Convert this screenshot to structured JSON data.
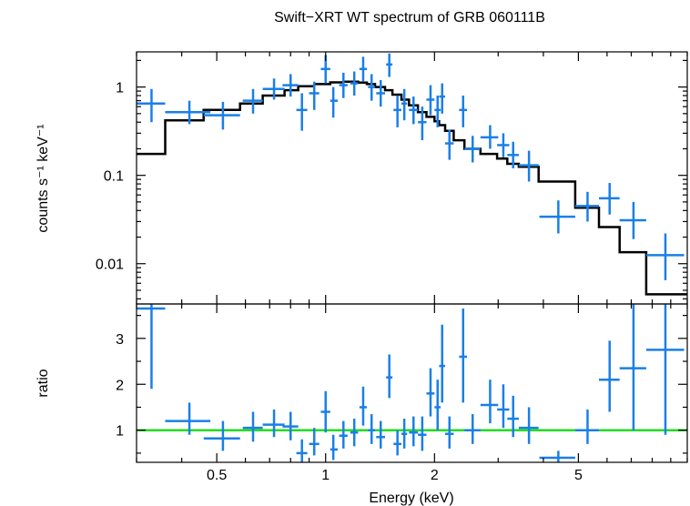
{
  "chart_data": [
    {
      "panel": "spectrum",
      "type": "scatter",
      "title": "Swift−XRT WT spectrum of GRB 060111B",
      "ylabel": "counts s⁻¹ keV⁻¹",
      "xlabel": "",
      "xscale": "log",
      "yscale": "log",
      "xlim": [
        0.3,
        10
      ],
      "ylim": [
        0.0035,
        2.5
      ],
      "yticks": [
        {
          "v": 0.01,
          "label": "0.01"
        },
        {
          "v": 0.1,
          "label": "0.1"
        },
        {
          "v": 1,
          "label": "1"
        }
      ],
      "colors": {
        "data": "#1a7fe6",
        "model": "#000000"
      },
      "points": [
        {
          "x": 0.33,
          "xlo": 0.3,
          "xhi": 0.36,
          "y": 0.65,
          "ylo": 0.4,
          "yhi": 0.95
        },
        {
          "x": 0.42,
          "xlo": 0.36,
          "xhi": 0.48,
          "y": 0.52,
          "ylo": 0.38,
          "yhi": 0.7
        },
        {
          "x": 0.52,
          "xlo": 0.46,
          "xhi": 0.58,
          "y": 0.48,
          "ylo": 0.33,
          "yhi": 0.68
        },
        {
          "x": 0.63,
          "xlo": 0.59,
          "xhi": 0.67,
          "y": 0.7,
          "ylo": 0.5,
          "yhi": 0.95
        },
        {
          "x": 0.72,
          "xlo": 0.67,
          "xhi": 0.77,
          "y": 0.95,
          "ylo": 0.72,
          "yhi": 1.25
        },
        {
          "x": 0.8,
          "xlo": 0.76,
          "xhi": 0.84,
          "y": 1.05,
          "ylo": 0.78,
          "yhi": 1.4
        },
        {
          "x": 0.86,
          "xlo": 0.83,
          "xhi": 0.89,
          "y": 0.55,
          "ylo": 0.32,
          "yhi": 0.85
        },
        {
          "x": 0.93,
          "xlo": 0.9,
          "xhi": 0.96,
          "y": 0.85,
          "ylo": 0.55,
          "yhi": 1.15
        },
        {
          "x": 1.0,
          "xlo": 0.97,
          "xhi": 1.03,
          "y": 1.6,
          "ylo": 1.1,
          "yhi": 2.3
        },
        {
          "x": 1.05,
          "xlo": 1.03,
          "xhi": 1.08,
          "y": 0.7,
          "ylo": 0.45,
          "yhi": 1.0
        },
        {
          "x": 1.12,
          "xlo": 1.09,
          "xhi": 1.15,
          "y": 1.05,
          "ylo": 0.75,
          "yhi": 1.45
        },
        {
          "x": 1.2,
          "xlo": 1.17,
          "xhi": 1.23,
          "y": 1.1,
          "ylo": 0.8,
          "yhi": 1.5
        },
        {
          "x": 1.27,
          "xlo": 1.24,
          "xhi": 1.3,
          "y": 1.6,
          "ylo": 1.15,
          "yhi": 2.2
        },
        {
          "x": 1.34,
          "xlo": 1.31,
          "xhi": 1.37,
          "y": 1.0,
          "ylo": 0.7,
          "yhi": 1.4
        },
        {
          "x": 1.42,
          "xlo": 1.38,
          "xhi": 1.46,
          "y": 0.85,
          "ylo": 0.6,
          "yhi": 1.2
        },
        {
          "x": 1.5,
          "xlo": 1.47,
          "xhi": 1.53,
          "y": 1.8,
          "ylo": 1.3,
          "yhi": 2.4
        },
        {
          "x": 1.58,
          "xlo": 1.54,
          "xhi": 1.62,
          "y": 0.55,
          "ylo": 0.35,
          "yhi": 0.8
        },
        {
          "x": 1.65,
          "xlo": 1.62,
          "xhi": 1.68,
          "y": 0.65,
          "ylo": 0.42,
          "yhi": 0.95
        },
        {
          "x": 1.75,
          "xlo": 1.7,
          "xhi": 1.8,
          "y": 0.55,
          "ylo": 0.38,
          "yhi": 0.78
        },
        {
          "x": 1.85,
          "xlo": 1.8,
          "xhi": 1.9,
          "y": 0.4,
          "ylo": 0.25,
          "yhi": 0.6
        },
        {
          "x": 1.95,
          "xlo": 1.9,
          "xhi": 2.0,
          "y": 0.72,
          "ylo": 0.48,
          "yhi": 1.05
        },
        {
          "x": 2.04,
          "xlo": 2.0,
          "xhi": 2.08,
          "y": 0.55,
          "ylo": 0.35,
          "yhi": 0.8
        },
        {
          "x": 2.1,
          "xlo": 2.06,
          "xhi": 2.14,
          "y": 0.78,
          "ylo": 0.5,
          "yhi": 1.1
        },
        {
          "x": 2.2,
          "xlo": 2.14,
          "xhi": 2.26,
          "y": 0.23,
          "ylo": 0.15,
          "yhi": 0.33
        },
        {
          "x": 2.4,
          "xlo": 2.34,
          "xhi": 2.46,
          "y": 0.55,
          "ylo": 0.35,
          "yhi": 0.8
        },
        {
          "x": 2.55,
          "xlo": 2.42,
          "xhi": 2.68,
          "y": 0.2,
          "ylo": 0.14,
          "yhi": 0.28
        },
        {
          "x": 2.85,
          "xlo": 2.68,
          "xhi": 3.0,
          "y": 0.27,
          "ylo": 0.2,
          "yhi": 0.37
        },
        {
          "x": 3.1,
          "xlo": 2.98,
          "xhi": 3.22,
          "y": 0.22,
          "ylo": 0.16,
          "yhi": 0.3
        },
        {
          "x": 3.3,
          "xlo": 3.18,
          "xhi": 3.42,
          "y": 0.17,
          "ylo": 0.12,
          "yhi": 0.24
        },
        {
          "x": 3.65,
          "xlo": 3.42,
          "xhi": 3.88,
          "y": 0.13,
          "ylo": 0.085,
          "yhi": 0.19
        },
        {
          "x": 4.4,
          "xlo": 3.9,
          "xhi": 4.9,
          "y": 0.034,
          "ylo": 0.022,
          "yhi": 0.052
        },
        {
          "x": 5.3,
          "xlo": 4.9,
          "xhi": 5.7,
          "y": 0.045,
          "ylo": 0.03,
          "yhi": 0.065
        },
        {
          "x": 6.1,
          "xlo": 5.7,
          "xhi": 6.5,
          "y": 0.055,
          "ylo": 0.036,
          "yhi": 0.082
        },
        {
          "x": 7.1,
          "xlo": 6.5,
          "xhi": 7.7,
          "y": 0.031,
          "ylo": 0.019,
          "yhi": 0.05
        },
        {
          "x": 8.7,
          "xlo": 7.7,
          "xhi": 9.8,
          "y": 0.0125,
          "ylo": 0.0065,
          "yhi": 0.022
        }
      ],
      "model": [
        {
          "x": 0.3,
          "y": 0.175
        },
        {
          "x": 0.36,
          "y": 0.175
        },
        {
          "x": 0.36,
          "y": 0.42
        },
        {
          "x": 0.46,
          "y": 0.42
        },
        {
          "x": 0.46,
          "y": 0.55
        },
        {
          "x": 0.58,
          "y": 0.55
        },
        {
          "x": 0.58,
          "y": 0.65
        },
        {
          "x": 0.67,
          "y": 0.65
        },
        {
          "x": 0.67,
          "y": 0.8
        },
        {
          "x": 0.77,
          "y": 0.8
        },
        {
          "x": 0.77,
          "y": 0.92
        },
        {
          "x": 0.84,
          "y": 0.92
        },
        {
          "x": 0.84,
          "y": 1.02
        },
        {
          "x": 0.93,
          "y": 1.02
        },
        {
          "x": 0.93,
          "y": 1.08
        },
        {
          "x": 1.03,
          "y": 1.08
        },
        {
          "x": 1.03,
          "y": 1.13
        },
        {
          "x": 1.12,
          "y": 1.13
        },
        {
          "x": 1.12,
          "y": 1.15
        },
        {
          "x": 1.23,
          "y": 1.15
        },
        {
          "x": 1.23,
          "y": 1.12
        },
        {
          "x": 1.3,
          "y": 1.12
        },
        {
          "x": 1.3,
          "y": 1.08
        },
        {
          "x": 1.37,
          "y": 1.08
        },
        {
          "x": 1.37,
          "y": 1.0
        },
        {
          "x": 1.46,
          "y": 1.0
        },
        {
          "x": 1.46,
          "y": 0.92
        },
        {
          "x": 1.53,
          "y": 0.92
        },
        {
          "x": 1.53,
          "y": 0.82
        },
        {
          "x": 1.62,
          "y": 0.82
        },
        {
          "x": 1.62,
          "y": 0.72
        },
        {
          "x": 1.7,
          "y": 0.72
        },
        {
          "x": 1.7,
          "y": 0.62
        },
        {
          "x": 1.8,
          "y": 0.62
        },
        {
          "x": 1.8,
          "y": 0.52
        },
        {
          "x": 1.9,
          "y": 0.52
        },
        {
          "x": 1.9,
          "y": 0.46
        },
        {
          "x": 2.0,
          "y": 0.46
        },
        {
          "x": 2.0,
          "y": 0.41
        },
        {
          "x": 2.06,
          "y": 0.41
        },
        {
          "x": 2.06,
          "y": 0.37
        },
        {
          "x": 2.14,
          "y": 0.37
        },
        {
          "x": 2.14,
          "y": 0.32
        },
        {
          "x": 2.26,
          "y": 0.32
        },
        {
          "x": 2.26,
          "y": 0.25
        },
        {
          "x": 2.42,
          "y": 0.25
        },
        {
          "x": 2.42,
          "y": 0.2
        },
        {
          "x": 2.68,
          "y": 0.2
        },
        {
          "x": 2.68,
          "y": 0.175
        },
        {
          "x": 2.98,
          "y": 0.175
        },
        {
          "x": 2.98,
          "y": 0.155
        },
        {
          "x": 3.18,
          "y": 0.155
        },
        {
          "x": 3.18,
          "y": 0.135
        },
        {
          "x": 3.42,
          "y": 0.135
        },
        {
          "x": 3.42,
          "y": 0.125
        },
        {
          "x": 3.88,
          "y": 0.125
        },
        {
          "x": 3.88,
          "y": 0.085
        },
        {
          "x": 4.9,
          "y": 0.085
        },
        {
          "x": 4.9,
          "y": 0.043
        },
        {
          "x": 5.7,
          "y": 0.043
        },
        {
          "x": 5.7,
          "y": 0.026
        },
        {
          "x": 6.5,
          "y": 0.026
        },
        {
          "x": 6.5,
          "y": 0.0135
        },
        {
          "x": 7.7,
          "y": 0.0135
        },
        {
          "x": 7.7,
          "y": 0.0045
        },
        {
          "x": 10.0,
          "y": 0.0045
        }
      ]
    },
    {
      "panel": "ratio",
      "type": "scatter",
      "title": "",
      "ylabel": "ratio",
      "xlabel": "Energy (keV)",
      "xscale": "log",
      "yscale": "linear",
      "xlim": [
        0.3,
        10
      ],
      "ylim": [
        0.3,
        3.75
      ],
      "xticks": [
        {
          "v": 0.5,
          "label": "0.5"
        },
        {
          "v": 1,
          "label": "1"
        },
        {
          "v": 2,
          "label": "2"
        },
        {
          "v": 5,
          "label": "5"
        }
      ],
      "yticks": [
        {
          "v": 1,
          "label": "1"
        },
        {
          "v": 2,
          "label": "2"
        },
        {
          "v": 3,
          "label": "3"
        }
      ],
      "reference_line": 1,
      "colors": {
        "data": "#1a7fe6",
        "reference": "#22dd22"
      },
      "points": [
        {
          "x": 0.33,
          "xlo": 0.3,
          "xhi": 0.36,
          "y": 3.65,
          "ylo": 1.9,
          "yhi": 3.75
        },
        {
          "x": 0.42,
          "xlo": 0.36,
          "xhi": 0.48,
          "y": 1.2,
          "ylo": 0.9,
          "yhi": 1.6
        },
        {
          "x": 0.52,
          "xlo": 0.46,
          "xhi": 0.58,
          "y": 0.82,
          "ylo": 0.55,
          "yhi": 1.2
        },
        {
          "x": 0.63,
          "xlo": 0.59,
          "xhi": 0.67,
          "y": 1.05,
          "ylo": 0.75,
          "yhi": 1.4
        },
        {
          "x": 0.72,
          "xlo": 0.67,
          "xhi": 0.77,
          "y": 1.12,
          "ylo": 0.85,
          "yhi": 1.45
        },
        {
          "x": 0.8,
          "xlo": 0.76,
          "xhi": 0.84,
          "y": 1.08,
          "ylo": 0.78,
          "yhi": 1.4
        },
        {
          "x": 0.86,
          "xlo": 0.83,
          "xhi": 0.89,
          "y": 0.5,
          "ylo": 0.3,
          "yhi": 0.8
        },
        {
          "x": 0.93,
          "xlo": 0.9,
          "xhi": 0.96,
          "y": 0.7,
          "ylo": 0.45,
          "yhi": 1.05
        },
        {
          "x": 1.0,
          "xlo": 0.97,
          "xhi": 1.03,
          "y": 1.4,
          "ylo": 0.95,
          "yhi": 1.85
        },
        {
          "x": 1.05,
          "xlo": 1.03,
          "xhi": 1.08,
          "y": 0.58,
          "ylo": 0.35,
          "yhi": 0.9
        },
        {
          "x": 1.12,
          "xlo": 1.09,
          "xhi": 1.15,
          "y": 0.88,
          "ylo": 0.6,
          "yhi": 1.2
        },
        {
          "x": 1.2,
          "xlo": 1.17,
          "xhi": 1.23,
          "y": 0.95,
          "ylo": 0.65,
          "yhi": 1.25
        },
        {
          "x": 1.27,
          "xlo": 1.24,
          "xhi": 1.3,
          "y": 1.5,
          "ylo": 1.1,
          "yhi": 1.95
        },
        {
          "x": 1.34,
          "xlo": 1.31,
          "xhi": 1.37,
          "y": 1.0,
          "ylo": 0.7,
          "yhi": 1.35
        },
        {
          "x": 1.42,
          "xlo": 1.38,
          "xhi": 1.46,
          "y": 0.85,
          "ylo": 0.6,
          "yhi": 1.2
        },
        {
          "x": 1.5,
          "xlo": 1.47,
          "xhi": 1.53,
          "y": 2.15,
          "ylo": 1.7,
          "yhi": 2.65
        },
        {
          "x": 1.58,
          "xlo": 1.54,
          "xhi": 1.62,
          "y": 0.7,
          "ylo": 0.45,
          "yhi": 1.0
        },
        {
          "x": 1.65,
          "xlo": 1.62,
          "xhi": 1.68,
          "y": 0.92,
          "ylo": 0.6,
          "yhi": 1.25
        },
        {
          "x": 1.75,
          "xlo": 1.7,
          "xhi": 1.8,
          "y": 0.95,
          "ylo": 0.65,
          "yhi": 1.3
        },
        {
          "x": 1.85,
          "xlo": 1.8,
          "xhi": 1.9,
          "y": 0.9,
          "ylo": 0.55,
          "yhi": 1.3
        },
        {
          "x": 1.95,
          "xlo": 1.9,
          "xhi": 2.0,
          "y": 1.8,
          "ylo": 1.3,
          "yhi": 2.35
        },
        {
          "x": 2.04,
          "xlo": 2.0,
          "xhi": 2.08,
          "y": 1.5,
          "ylo": 1.0,
          "yhi": 2.1
        },
        {
          "x": 2.1,
          "xlo": 2.06,
          "xhi": 2.14,
          "y": 2.4,
          "ylo": 1.6,
          "yhi": 3.3
        },
        {
          "x": 2.2,
          "xlo": 2.14,
          "xhi": 2.26,
          "y": 0.92,
          "ylo": 0.6,
          "yhi": 1.3
        },
        {
          "x": 2.4,
          "xlo": 2.34,
          "xhi": 2.46,
          "y": 2.6,
          "ylo": 1.6,
          "yhi": 3.65
        },
        {
          "x": 2.55,
          "xlo": 2.42,
          "xhi": 2.68,
          "y": 1.0,
          "ylo": 0.7,
          "yhi": 1.35
        },
        {
          "x": 2.85,
          "xlo": 2.68,
          "xhi": 3.0,
          "y": 1.55,
          "ylo": 1.15,
          "yhi": 2.1
        },
        {
          "x": 3.1,
          "xlo": 2.98,
          "xhi": 3.22,
          "y": 1.45,
          "ylo": 1.05,
          "yhi": 2.0
        },
        {
          "x": 3.3,
          "xlo": 3.18,
          "xhi": 3.42,
          "y": 1.25,
          "ylo": 0.85,
          "yhi": 1.75
        },
        {
          "x": 3.65,
          "xlo": 3.42,
          "xhi": 3.88,
          "y": 1.05,
          "ylo": 0.7,
          "yhi": 1.5
        },
        {
          "x": 4.4,
          "xlo": 3.9,
          "xhi": 4.9,
          "y": 0.4,
          "ylo": 0.3,
          "yhi": 0.55
        },
        {
          "x": 5.3,
          "xlo": 4.9,
          "xhi": 5.7,
          "y": 1.0,
          "ylo": 0.7,
          "yhi": 1.45
        },
        {
          "x": 6.1,
          "xlo": 5.7,
          "xhi": 6.5,
          "y": 2.1,
          "ylo": 1.4,
          "yhi": 2.95
        },
        {
          "x": 7.1,
          "xlo": 6.5,
          "xhi": 7.7,
          "y": 2.35,
          "ylo": 1.0,
          "yhi": 3.75
        },
        {
          "x": 8.7,
          "xlo": 7.7,
          "xhi": 9.8,
          "y": 2.75,
          "ylo": 0.9,
          "yhi": 3.75
        }
      ]
    }
  ]
}
